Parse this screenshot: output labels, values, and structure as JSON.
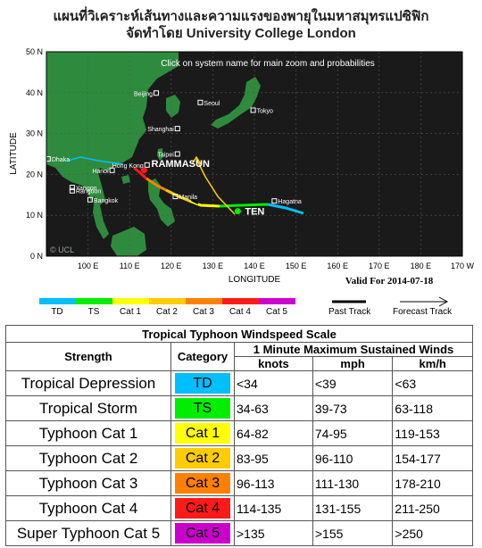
{
  "title_line1": "แผนที่วิเคราะห์เส้นทางและความแรงของพายุในมหาสมุทรแปซิฟิก",
  "title_line2": "จัดทำโดย University College London",
  "map": {
    "instruction": "Click on system name for main zoom and probabilities",
    "xlabel": "LONGITUDE",
    "ylabel": "LATITUDE",
    "x_ticks": [
      "100 E",
      "110 E",
      "120 E",
      "130 E",
      "140 E",
      "150 E",
      "160 E",
      "170 E",
      "180 E",
      "170 W"
    ],
    "y_ticks": [
      "50 N",
      "40 N",
      "30 N",
      "20 N",
      "10 N",
      "0 N"
    ],
    "valid_for": "Valid For 2014-07-18",
    "watermark": "© UCL",
    "cities": [
      {
        "name": "Beijing",
        "lon": 116.4,
        "lat": 39.9
      },
      {
        "name": "Seoul",
        "lon": 127.0,
        "lat": 37.6
      },
      {
        "name": "Tokyo",
        "lon": 139.7,
        "lat": 35.7
      },
      {
        "name": "Shanghai",
        "lon": 121.5,
        "lat": 31.2
      },
      {
        "name": "Taipei",
        "lon": 121.5,
        "lat": 25.0
      },
      {
        "name": "Hong Kong",
        "lon": 114.2,
        "lat": 22.3
      },
      {
        "name": "Hanoi",
        "lon": 105.8,
        "lat": 21.0
      },
      {
        "name": "Dhaka",
        "lon": 90.4,
        "lat": 23.8
      },
      {
        "name": "Yangon",
        "lon": 96.2,
        "lat": 16.8
      },
      {
        "name": "Rangoon",
        "lon": 96.2,
        "lat": 16.0
      },
      {
        "name": "Bangkok",
        "lon": 100.5,
        "lat": 13.8
      },
      {
        "name": "Manila",
        "lon": 121.0,
        "lat": 14.6
      },
      {
        "name": "Hagatna",
        "lon": 144.8,
        "lat": 13.5
      }
    ],
    "storms": [
      {
        "name": "RAMMASUN",
        "lon": 113.5,
        "lat": 21.0
      },
      {
        "name": "TEN",
        "lon": 136.0,
        "lat": 11.0
      }
    ]
  },
  "legend": {
    "categories": [
      {
        "label": "TD",
        "color": "#00bfff"
      },
      {
        "label": "TS",
        "color": "#00ee00"
      },
      {
        "label": "Cat 1",
        "color": "#ffff00"
      },
      {
        "label": "Cat 2",
        "color": "#ffcc00"
      },
      {
        "label": "Cat 3",
        "color": "#ff8000"
      },
      {
        "label": "Cat 4",
        "color": "#ff1a1a"
      },
      {
        "label": "Cat 5",
        "color": "#cc00cc"
      }
    ],
    "past_track": "Past Track",
    "forecast_track": "Forecast Track"
  },
  "scale": {
    "title": "Tropical Typhoon Windspeed Scale",
    "h_strength": "Strength",
    "h_category": "Category",
    "h_winds": "1 Minute Maximum Sustained Winds",
    "h_knots": "knots",
    "h_mph": "mph",
    "h_kmh": "km/h",
    "rows": [
      {
        "strength": "Tropical Depression",
        "category": "TD",
        "color": "#00bfff",
        "knots": "<34",
        "mph": "<39",
        "kmh": "<63"
      },
      {
        "strength": "Tropical Storm",
        "category": "TS",
        "color": "#00ee00",
        "knots": "34-63",
        "mph": "39-73",
        "kmh": "63-118"
      },
      {
        "strength": "Typhoon Cat 1",
        "category": "Cat 1",
        "color": "#ffff00",
        "knots": "64-82",
        "mph": "74-95",
        "kmh": "119-153"
      },
      {
        "strength": "Typhoon Cat 2",
        "category": "Cat 2",
        "color": "#ffcc00",
        "knots": "83-95",
        "mph": "96-110",
        "kmh": "154-177"
      },
      {
        "strength": "Typhoon Cat 3",
        "category": "Cat 3",
        "color": "#ff8000",
        "knots": "96-113",
        "mph": "111-130",
        "kmh": "178-210"
      },
      {
        "strength": "Typhoon Cat 4",
        "category": "Cat 4",
        "color": "#ff1a1a",
        "knots": "114-135",
        "mph": "131-155",
        "kmh": "211-250"
      },
      {
        "strength": "Super Typhoon Cat 5",
        "category": "Cat 5",
        "color": "#cc00cc",
        "knots": ">135",
        "mph": ">155",
        "kmh": ">250"
      }
    ]
  }
}
